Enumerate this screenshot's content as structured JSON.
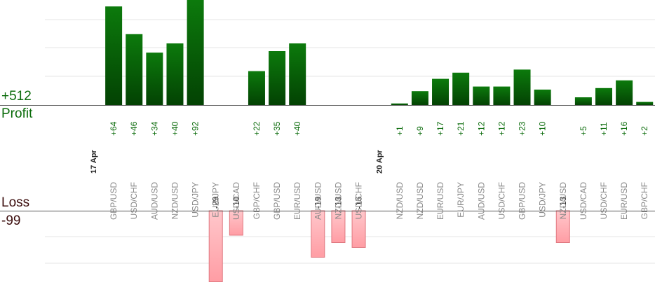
{
  "profit_total": "+512",
  "profit_label": "Profit",
  "loss_label": "Loss",
  "loss_total": "-99",
  "colors": {
    "profit_top": "#0c7a0c",
    "profit_bottom": "#034203",
    "profit_text": "#0a6b0a",
    "loss_fill": "#ffb3b8",
    "loss_stroke": "#e07880",
    "axis": "#555555",
    "grid": "#e6e6e6",
    "label_text": "#888888",
    "date_text": "#222222"
  },
  "chart_data": {
    "type": "bar",
    "profit_scale_max": 150,
    "loss_scale_max": 30,
    "items": [
      {
        "date": "17 Apr"
      },
      {
        "pair": "GBP/USD",
        "value": 64,
        "label": "+64"
      },
      {
        "pair": "USD/CHF",
        "value": 46,
        "label": "+46"
      },
      {
        "pair": "AUD/USD",
        "value": 34,
        "label": "+34"
      },
      {
        "pair": "NZD/USD",
        "value": 40,
        "label": "+40"
      },
      {
        "pair": "USD/JPY",
        "value": 92,
        "label": "+92"
      },
      {
        "pair": "EUR/JPY",
        "value": -29,
        "label": "-29"
      },
      {
        "pair": "USD/CAD",
        "value": -10,
        "label": "-10"
      },
      {
        "pair": "GBP/CHF",
        "value": 22,
        "label": "+22"
      },
      {
        "pair": "GBP/USD",
        "value": 35,
        "label": "+35"
      },
      {
        "pair": "EUR/USD",
        "value": 40,
        "label": "+40"
      },
      {
        "pair": "AUD/USD",
        "value": -19,
        "label": "-19"
      },
      {
        "pair": "NZD/USD",
        "value": -13,
        "label": "-13"
      },
      {
        "pair": "USD/CHF",
        "value": -15,
        "label": "-15"
      },
      {
        "date": "20 Apr"
      },
      {
        "pair": "NZD/USD",
        "value": 1,
        "label": "+1"
      },
      {
        "pair": "NZD/USD",
        "value": 9,
        "label": "+9"
      },
      {
        "pair": "EUR/USD",
        "value": 17,
        "label": "+17"
      },
      {
        "pair": "EUR/JPY",
        "value": 21,
        "label": "+21"
      },
      {
        "pair": "AUD/USD",
        "value": 12,
        "label": "+12"
      },
      {
        "pair": "USD/CHF",
        "value": 12,
        "label": "+12"
      },
      {
        "pair": "GBP/USD",
        "value": 23,
        "label": "+23"
      },
      {
        "pair": "USD/JPY",
        "value": 10,
        "label": "+10"
      },
      {
        "pair": "NZD/USD",
        "value": -13,
        "label": "-13"
      },
      {
        "pair": "USD/CAD",
        "value": 5,
        "label": "+5"
      },
      {
        "pair": "USD/CHF",
        "value": 11,
        "label": "+11"
      },
      {
        "pair": "EUR/USD",
        "value": 16,
        "label": "+16"
      },
      {
        "pair": "GBP/CHF",
        "value": 2,
        "label": "+2"
      }
    ]
  }
}
